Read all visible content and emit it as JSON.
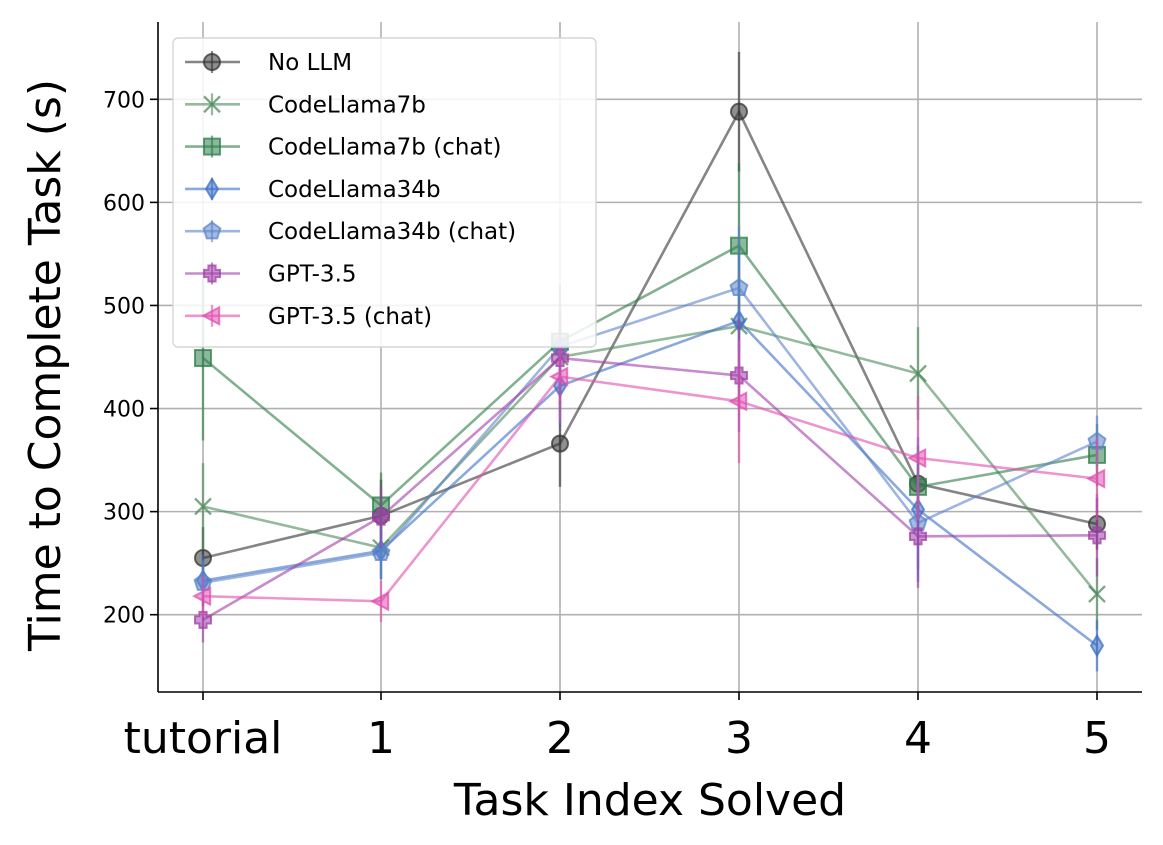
{
  "chart_data": {
    "type": "line",
    "title": "",
    "xlabel": "Task Index Solved",
    "ylabel": "Time to Complete Task (s)",
    "categories": [
      "tutorial",
      "1",
      "2",
      "3",
      "4",
      "5"
    ],
    "ylim": [
      125,
      775
    ],
    "yticks": [
      200,
      300,
      400,
      500,
      600,
      700
    ],
    "grid": true,
    "legend_position": "top-left",
    "series": [
      {
        "name": "No LLM",
        "color": "#333333",
        "marker": "circle",
        "values": [
          255,
          296,
          366,
          688,
          327,
          288
        ],
        "err": [
          30,
          35,
          42,
          58,
          30,
          25
        ]
      },
      {
        "name": "CodeLlama7b",
        "color": "#4f8a5b",
        "marker": "x",
        "values": [
          305,
          265,
          450,
          480,
          434,
          220
        ],
        "err": [
          42,
          30,
          38,
          80,
          45,
          35
        ]
      },
      {
        "name": "CodeLlama7b (chat)",
        "color": "#2e7d4a",
        "marker": "square",
        "values": [
          449,
          306,
          465,
          558,
          324,
          355
        ],
        "err": [
          80,
          32,
          55,
          80,
          40,
          30
        ]
      },
      {
        "name": "CodeLlama34b",
        "color": "#3d6fc4",
        "marker": "diamond",
        "values": [
          233,
          262,
          422,
          485,
          302,
          170
        ],
        "err": [
          25,
          28,
          40,
          65,
          70,
          25
        ]
      },
      {
        "name": "CodeLlama34b (chat)",
        "color": "#5b84c9",
        "marker": "pentagon",
        "values": [
          231,
          260,
          460,
          517,
          289,
          368
        ],
        "err": [
          22,
          25,
          40,
          60,
          45,
          25
        ]
      },
      {
        "name": "GPT-3.5",
        "color": "#a040a8",
        "marker": "plus",
        "values": [
          195,
          295,
          449,
          432,
          276,
          277
        ],
        "err": [
          22,
          30,
          45,
          55,
          50,
          40
        ]
      },
      {
        "name": "GPT-3.5 (chat)",
        "color": "#e050b0",
        "marker": "triangle-left",
        "values": [
          218,
          213,
          431,
          407,
          352,
          332
        ],
        "err": [
          20,
          20,
          45,
          60,
          60,
          40
        ]
      }
    ]
  }
}
